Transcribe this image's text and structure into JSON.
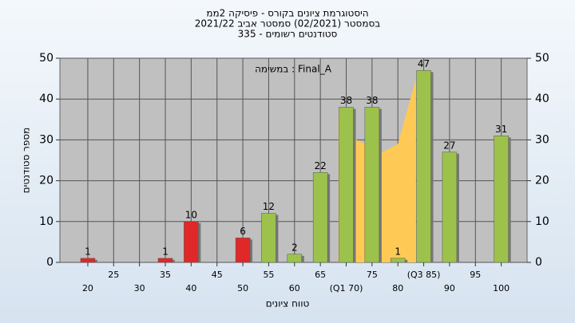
{
  "chart_data": {
    "type": "bar",
    "title": "היסטוגרמת ציונים בקורס - פיסיקה 2ממ",
    "subtitle": "בסמסטר  (02/2021)  סמסטר אביב 2021/22",
    "subtitle2": "סטודנטים רשומים - 335",
    "annotation": "Final_A : במשימה",
    "x_label": "טווח ציונים",
    "y_label": "מספר סטודנטים",
    "x": [
      20,
      35,
      40,
      50,
      55,
      60,
      65,
      70,
      75,
      80,
      85,
      90,
      100
    ],
    "values": [
      1,
      1,
      10,
      6,
      12,
      2,
      22,
      38,
      38,
      1,
      47,
      27,
      31
    ],
    "colors": [
      "#e02828",
      "#e02828",
      "#e02828",
      "#e02828",
      "#9cc24c",
      "#9cc24c",
      "#9cc24c",
      "#9cc24c",
      "#9cc24c",
      "#9cc24c",
      "#9cc24c",
      "#9cc24c",
      "#9cc24c"
    ],
    "area": {
      "x": [
        68.5,
        72,
        77,
        80,
        83.5
      ],
      "values": [
        36,
        30,
        27,
        29,
        45
      ],
      "color": "#ffc955"
    },
    "xlim": [
      14.6,
      105
    ],
    "xticks": [
      20,
      25,
      30,
      35,
      40,
      45,
      50,
      55,
      60,
      65,
      {
        "value": 70,
        "label": "(Q1 70)"
      },
      75,
      80,
      {
        "value": 85,
        "label": "(Q3 85)"
      },
      90,
      95,
      100
    ],
    "ylim": [
      0,
      50
    ],
    "yticks": [
      0,
      10,
      20,
      30,
      40,
      50
    ],
    "y2lim": [
      0,
      50
    ],
    "y2ticks": [
      0,
      10,
      20,
      30,
      40,
      50
    ],
    "grid": true
  }
}
